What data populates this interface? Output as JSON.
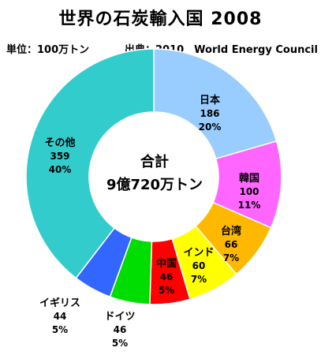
{
  "header": {
    "title": "世界の石炭輸入国 2008",
    "unit_note": "単位：100万トン",
    "source_note": "出典：2010　World Energy Council"
  },
  "center": {
    "line1": "合計",
    "line2": "9億720万トン"
  },
  "chart_data": {
    "type": "pie",
    "donut": true,
    "title": "世界の石炭輸入国 2008",
    "unit": "100万トン",
    "total_label": "9億720万トン",
    "slices": [
      {
        "name": "日本",
        "value": 186,
        "percent": "20%",
        "color": "#99CCFF"
      },
      {
        "name": "韓国",
        "value": 100,
        "percent": "11%",
        "color": "#FF66FF"
      },
      {
        "name": "台湾",
        "value": 66,
        "percent": "7%",
        "color": "#FFB800"
      },
      {
        "name": "インド",
        "value": 60,
        "percent": "7%",
        "color": "#FFFF00"
      },
      {
        "name": "中国",
        "value": 46,
        "percent": "5%",
        "color": "#FF0000"
      },
      {
        "name": "ドイツ",
        "value": 46,
        "percent": "5%",
        "color": "#00DD00"
      },
      {
        "name": "イギリス",
        "value": 44,
        "percent": "5%",
        "color": "#3366FF"
      },
      {
        "name": "その他",
        "value": 359,
        "percent": "40%",
        "color": "#33CCCC"
      }
    ]
  }
}
